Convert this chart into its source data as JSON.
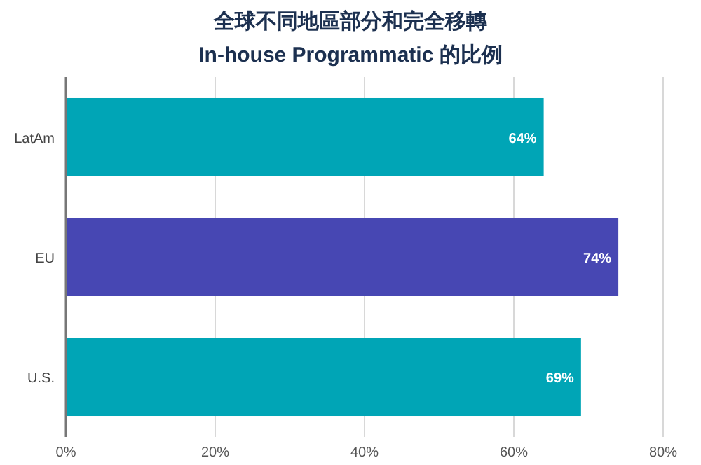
{
  "chart_data": {
    "type": "bar",
    "orientation": "horizontal",
    "title": "全球不同地區部分和完全移轉\nIn-house Programmatic 的比例",
    "categories": [
      "LatAm",
      "EU",
      "U.S."
    ],
    "values": [
      64,
      74,
      69
    ],
    "value_labels": [
      "64%",
      "74%",
      "69%"
    ],
    "colors": [
      "#00a5b6",
      "#4747b3",
      "#00a5b6"
    ],
    "xlim": [
      0,
      80
    ],
    "xticks": [
      {
        "value": 0,
        "label": "0%"
      },
      {
        "value": 20,
        "label": "20%"
      },
      {
        "value": 40,
        "label": "40%"
      },
      {
        "value": 60,
        "label": "60%"
      },
      {
        "value": 80,
        "label": "80%"
      }
    ],
    "grid": "x"
  }
}
